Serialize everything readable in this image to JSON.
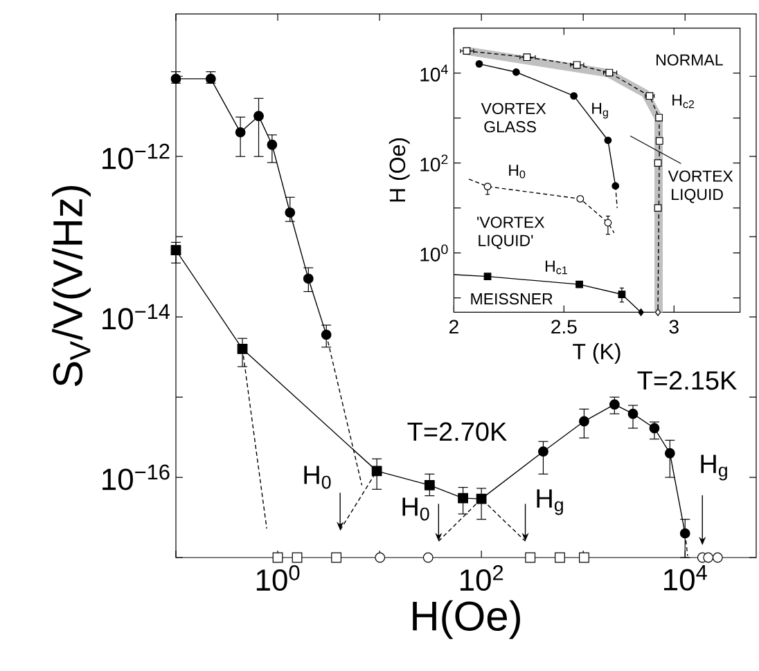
{
  "chart_data": [
    {
      "type": "line",
      "xlabel": "H(Oe)",
      "ylabel": "S$_{V}$/V(V/Hz)",
      "log": "xy",
      "grid": false,
      "xlim": [
        0.1,
        50000
      ],
      "ylim": [
        1e-17,
        6e-11
      ],
      "xticks": [
        {
          "value": 0.1,
          "label": null
        },
        {
          "value": 1,
          "label": "10$^{0}$"
        },
        {
          "value": 10,
          "label": null
        },
        {
          "value": 100,
          "label": "10$^{2}$"
        },
        {
          "value": 1000,
          "label": null
        },
        {
          "value": 10000,
          "label": "10$^{4}$"
        }
      ],
      "yticks": [
        {
          "value": 1e-17,
          "label": null
        },
        {
          "value": 1e-16,
          "label": "10$^{−16}$"
        },
        {
          "value": 1e-15,
          "label": null
        },
        {
          "value": 1e-14,
          "label": "10$^{−14}$"
        },
        {
          "value": 1e-13,
          "label": null
        },
        {
          "value": 1e-12,
          "label": "10$^{−12}$"
        },
        {
          "value": 1e-11,
          "label": null
        }
      ],
      "series": [
        {
          "color": "#000000",
          "marker": "circle",
          "x": [
            0.1,
            0.22,
            0.43,
            0.65,
            0.88,
            1.32,
            2.0,
            3.0
          ],
          "values": [
            9.3e-12,
            9.3e-12,
            2e-12,
            3.2e-12,
            1.4e-12,
            2e-13,
            3e-14,
            6e-15
          ],
          "errors": [
            [
              8.2e-12,
              1.14e-11
            ],
            [
              8.2e-12,
              1.14e-11
            ],
            [
              1e-12,
              3.1e-12
            ],
            [
              1e-12,
              5.3e-12
            ],
            [
              8.4e-13,
              1.86e-12
            ],
            [
              1.55e-13,
              3.1e-13
            ],
            [
              2.07e-14,
              4.1e-14
            ],
            [
              4.2e-15,
              7.9e-15
            ]
          ]
        },
        {
          "color": "#000000",
          "marker": "square",
          "x": [
            0.1,
            0.45,
            9.4,
            31,
            66,
            100
          ],
          "values": [
            6.8e-14,
            4e-15,
            1.2e-16,
            8e-17,
            5.5e-17,
            5.4e-17
          ],
          "errors": [
            [
              4.7e-14,
              8.5e-14
            ],
            [
              2.4e-15,
              5.4e-15
            ],
            [
              7.1e-17,
              1.7e-16
            ],
            [
              5.9e-17,
              1.1e-16
            ],
            [
              3.5e-17,
              7.5e-17
            ],
            [
              3e-17,
              7.3e-17
            ]
          ]
        },
        {
          "color": "#000000",
          "x": [
            100,
            405
          ],
          "values": [
            5.4e-17,
            2.1e-16
          ]
        },
        {
          "color": "#000000",
          "marker": "circle",
          "x": [
            405,
            1020,
            2030,
            3080,
            5000,
            7100,
            10000
          ],
          "values": [
            2.1e-16,
            5e-16,
            8.1e-16,
            6.2e-16,
            4.1e-16,
            2e-16,
            2e-17
          ],
          "errors": [
            [
              1.1e-16,
              2.8e-16
            ],
            [
              3.1e-16,
              7.1e-16
            ],
            [
              6.2e-16,
              1e-15
            ],
            [
              4.1e-16,
              7.9e-16
            ],
            [
              3e-16,
              4.9e-16
            ],
            [
              1e-16,
              2.9e-16
            ],
            [
              1e-17,
              3e-17
            ]
          ]
        },
        {
          "color": "#000000",
          "line_style": "dashed",
          "x": [
            3.0,
            6.7
          ],
          "values": [
            6e-15,
            8e-17
          ]
        },
        {
          "color": "#000000",
          "line_style": "dashed",
          "x": [
            4.1,
            9.4
          ],
          "values": [
            2.2e-17,
            1.2e-16
          ]
        },
        {
          "color": "#000000",
          "line_style": "dashed",
          "x": [
            0.45,
            0.78
          ],
          "values": [
            4e-15,
            2.3e-17
          ]
        },
        {
          "color": "#000000",
          "line_style": "dashed",
          "x": [
            38,
            100,
            270
          ],
          "values": [
            1.6e-17,
            5.4e-17,
            1.6e-17
          ]
        },
        {
          "color": "#000000",
          "line_style": "dashed",
          "x": [
            10000,
            10600
          ],
          "values": [
            2e-17,
            1.05e-17
          ]
        },
        {
          "type": "scatter",
          "color": "#ffffff",
          "marker": "square",
          "x": [
            1.0,
            1.55,
            3.76,
            302,
            590,
            1020
          ],
          "values": [
            1e-17,
            1e-17,
            1e-17,
            1e-17,
            1e-17,
            1e-17
          ]
        },
        {
          "type": "scatter",
          "color": "#ffffff",
          "marker": "circle",
          "x": [
            10.1,
            30,
            14800,
            16900,
            20900
          ],
          "values": [
            1e-17,
            1e-17,
            1e-17,
            1e-17,
            1e-17
          ]
        }
      ],
      "annotations": [
        "T=2.70K",
        "T=2.15K",
        {
          "text": "H$_{0}$",
          "x": 4.1,
          "y": 2.2e-17
        },
        {
          "text": "H$_{0}$",
          "x": 38,
          "y": 1.6e-17
        },
        {
          "text": "H$_{g}$",
          "x": 270,
          "y": 1.6e-17
        },
        {
          "text": "H$_{g}$",
          "x": 14800,
          "y": 1e-17
        }
      ]
    },
    {
      "type": "line",
      "xlabel": "T (K)",
      "ylabel": "H (Oe)",
      "log": "y",
      "grid": false,
      "xlim": [
        2,
        3.3
      ],
      "ylim": [
        0.048,
        100000
      ],
      "xticks": [
        2,
        2.5,
        3
      ],
      "yticks": [
        {
          "value": 0.1,
          "label": null
        },
        {
          "value": 1,
          "label": "10$^{0}$"
        },
        {
          "value": 10,
          "label": null
        },
        {
          "value": 100,
          "label": "10$^{2}$"
        },
        {
          "value": 1000,
          "label": null
        },
        {
          "value": 10000,
          "label": "10$^{4}$"
        }
      ],
      "series": [
        {
          "color": "#c0c0c0",
          "x": [
            2.06,
            2.7,
            2.87,
            2.93,
            2.93
          ],
          "values": [
            31000,
            10000,
            3500,
            1000,
            0.048
          ]
        },
        {
          "color": "#000000",
          "line_style": "dashed",
          "x": [
            2.058,
            2.332,
            2.559,
            2.706,
            2.889,
            2.932,
            2.934,
            2.927
          ],
          "values": [
            31000,
            22500,
            15200,
            10200,
            3100,
            1020,
            310,
            0.048
          ]
        },
        {
          "type": "scatter",
          "color": "#ffffff",
          "marker": "square",
          "x": [
            2.058,
            2.332,
            2.559,
            2.706,
            2.889,
            2.932,
            2.934,
            2.927,
            2.927
          ],
          "values": [
            31000,
            22500,
            15200,
            10200,
            3100,
            1020,
            310,
            100,
            10
          ],
          "xerrors": [
            [
              2.03,
              2.09
            ],
            [
              2.3,
              2.37
            ],
            [
              2.53,
              2.59
            ],
            [
              2.68,
              2.74
            ],
            [
              2.87,
              2.91
            ],
            null,
            null,
            null,
            null
          ]
        },
        {
          "type": "scatter",
          "color": "#ffffff",
          "marker": "diamond",
          "x": [
            2.927
          ],
          "values": [
            0.048
          ]
        },
        {
          "color": "#000000",
          "marker": "circle",
          "x": [
            2.115,
            2.283,
            2.545,
            2.7,
            2.734
          ],
          "values": [
            16000,
            10500,
            3100,
            320,
            31
          ]
        },
        {
          "color": "#000000",
          "line_style": "dashed",
          "x": [
            2.734,
            2.742
          ],
          "values": [
            31,
            10
          ]
        },
        {
          "color": "#000000",
          "line_style": "dashed",
          "x": [
            2.068,
            2.153,
            2.574,
            2.7,
            2.728
          ],
          "values": [
            44,
            30,
            16,
            4.7,
            2.8
          ]
        },
        {
          "type": "scatter",
          "color": "#ffffff",
          "marker": "circle",
          "x": [
            2.153,
            2.574,
            2.7
          ],
          "values": [
            30,
            16,
            4.7
          ],
          "errors": [
            [
              20,
              35
            ],
            null,
            [
              2.6,
              6.6
            ]
          ]
        },
        {
          "color": "#000000",
          "x": [
            2.0,
            2.153,
            2.57,
            2.763,
            2.85
          ],
          "values": [
            0.33,
            0.3,
            0.2,
            0.12,
            0.048
          ]
        },
        {
          "type": "scatter",
          "color": "#000000",
          "marker": "square",
          "x": [
            2.153,
            2.57,
            2.763
          ],
          "values": [
            0.3,
            0.2,
            0.12
          ],
          "errors": [
            null,
            null,
            [
              0.081,
              0.166
            ]
          ]
        },
        {
          "type": "scatter",
          "color": "#000000",
          "marker": "diamond",
          "x": [
            2.85
          ],
          "values": [
            0.048
          ]
        }
      ],
      "annotations": [
        "NORMAL",
        "VORTEX GLASS",
        "VORTEX LIQUID",
        "'VORTEX LIQUID'",
        "MEISSNER",
        "H$_{g}$",
        "H$_{0}$",
        "H$_{c1}$",
        "H$_{c2}$"
      ]
    }
  ]
}
